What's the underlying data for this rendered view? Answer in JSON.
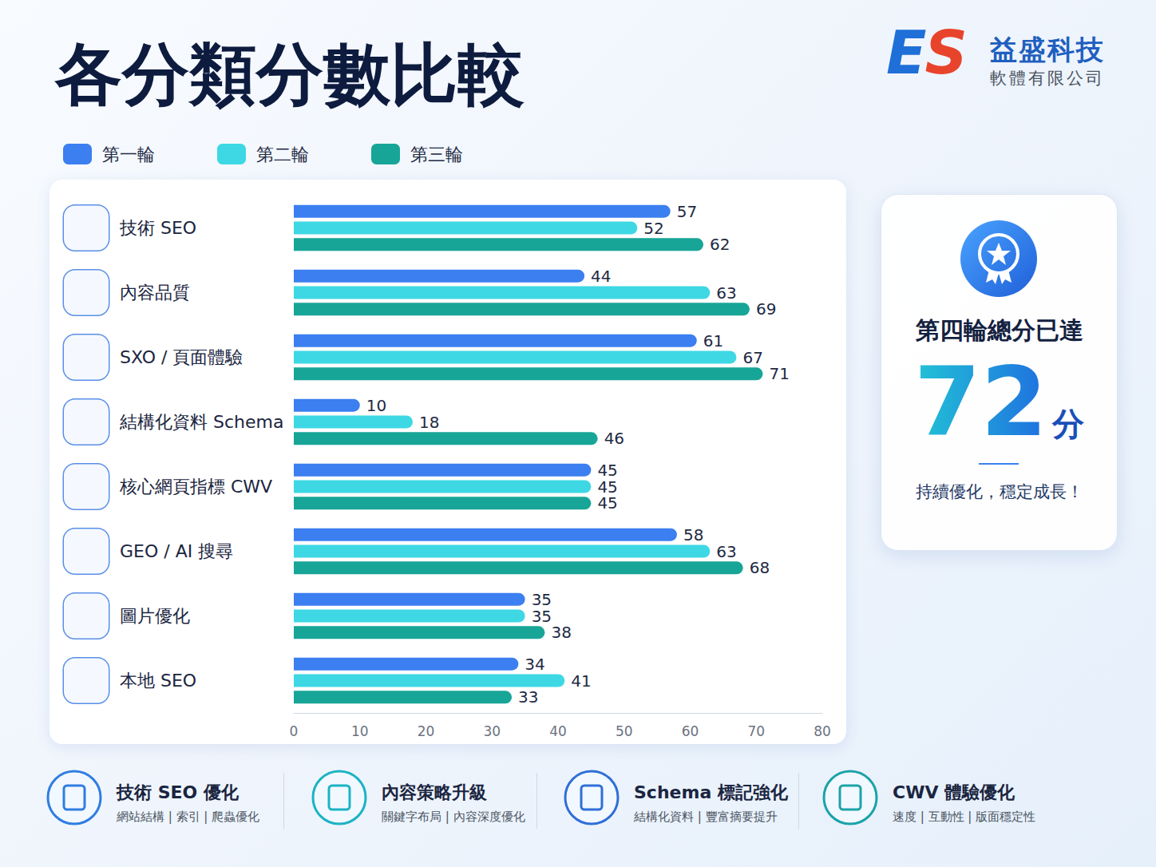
{
  "chart_data": {
    "type": "bar",
    "title": "各分類分數比較",
    "orientation": "horizontal",
    "data_labels": true,
    "grid": false,
    "legend": "top-left",
    "categories": [
      "技術 SEO",
      "內容品質",
      "SXO / 頁面體驗",
      "結構化資料 Schema",
      "核心網頁指標 CWV",
      "GEO / AI 搜尋",
      "圖片優化",
      "本地 SEO"
    ],
    "series": [
      {
        "name": "第一輪",
        "color": "#3b7ff0",
        "values": [
          57,
          44,
          61,
          10,
          45,
          58,
          35,
          34
        ]
      },
      {
        "name": "第二輪",
        "color": "#3dd8e4",
        "values": [
          52,
          63,
          67,
          18,
          45,
          63,
          35,
          41
        ]
      },
      {
        "name": "第三輪",
        "color": "#17a597",
        "values": [
          62,
          69,
          71,
          46,
          45,
          68,
          38,
          33
        ]
      }
    ],
    "xlim": [
      0,
      80
    ],
    "xticks": [
      0,
      10,
      20,
      30,
      40,
      50,
      60,
      70,
      80
    ]
  },
  "header": {
    "logo_mark": "ES",
    "company": "益盛科技",
    "company_subtitle": "軟體有限公司"
  },
  "card": {
    "heading": "第四輪總分已達",
    "score": 72,
    "unit": "分",
    "note": "持續優化，穩定成長！"
  },
  "footer": [
    {
      "title": "技術 SEO 優化",
      "subtitle": "網站結構 | 索引 | 爬蟲優化"
    },
    {
      "title": "內容策略升級",
      "subtitle": "關鍵字布局 | 內容深度優化"
    },
    {
      "title": "Schema 標記強化",
      "subtitle": "結構化資料 | 豐富摘要提升"
    },
    {
      "title": "CWV 體驗優化",
      "subtitle": "速度 | 互動性 | 版面穩定性"
    }
  ]
}
